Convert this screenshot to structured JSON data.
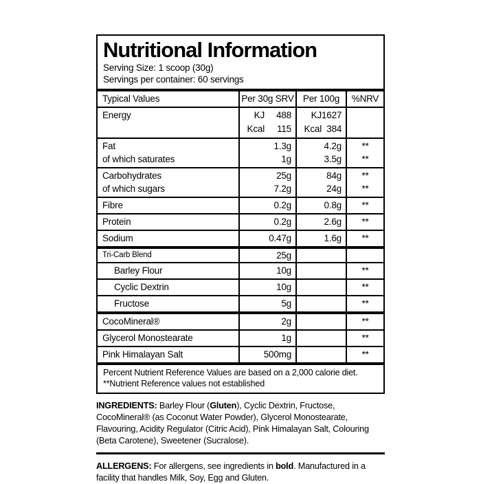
{
  "header": {
    "title": "Nutritional Information",
    "serving_size": "Serving Size: 1 scoop (30g)",
    "servings_per_container": "Servings per container: 60 servings"
  },
  "table": {
    "columns": {
      "typical_values": "Typical Values",
      "per_srv": "Per 30g SRV",
      "per_100g": "Per 100g",
      "nrv": "%NRV"
    },
    "energy": {
      "name": "Energy",
      "srv_kj_unit": "KJ",
      "srv_kj_value": "488",
      "srv_kcal_unit": "Kcal",
      "srv_kcal_value": "115",
      "p100_kj_unit": "KJ",
      "p100_kj_value": "1627",
      "p100_kcal_unit": "Kcal",
      "p100_kcal_value": "384"
    },
    "rows": [
      {
        "name": "Fat",
        "sub_name": "of which saturates",
        "srv": "1.3g",
        "srv_sub": "1g",
        "p100": "4.2g",
        "p100_sub": "3.5g",
        "nrv": "**",
        "nrv_sub": "**"
      },
      {
        "name": "Carbohydrates",
        "sub_name": "of which sugars",
        "srv": "25g",
        "srv_sub": "7.2g",
        "p100": "84g",
        "p100_sub": "24g",
        "nrv": "**",
        "nrv_sub": "**"
      },
      {
        "name": "Fibre",
        "srv": "0.2g",
        "p100": "0.8g",
        "nrv": "**"
      },
      {
        "name": "Protein",
        "srv": "0.2g",
        "p100": "2.6g",
        "nrv": "**"
      },
      {
        "name": "Sodium",
        "srv": "0.47g",
        "p100": "1.6g",
        "nrv": "**"
      },
      {
        "name": "Tri-Carb Blend",
        "srv": "25g"
      },
      {
        "name": "Barley Flour",
        "srv": "10g",
        "nrv": "**"
      },
      {
        "name": "Cyclic Dextrin",
        "srv": "10g",
        "nrv": "**"
      },
      {
        "name": "Fructose",
        "srv": "5g",
        "nrv": "**"
      },
      {
        "name": "CocoMineral®",
        "srv": "2g",
        "nrv": "**"
      },
      {
        "name": "Glycerol Monostearate",
        "srv": "1g",
        "nrv": "**"
      },
      {
        "name": "Pink Himalayan Salt",
        "srv": "500mg",
        "nrv": "**"
      }
    ],
    "footnotes": {
      "line1": "Percent Nutrient Reference Values are based on a 2,000 calorie diet.",
      "line2": "**Nutrient Reference values not established"
    }
  },
  "ingredients": {
    "label": "INGREDIENTS:",
    "part1": " Barley Flour (",
    "bold1": "Gluten",
    "part2": "), Cyclic Dextrin, Fructose, CocoMineral® (as Coconut Water Powder), Glycerol Monostearate, Flavouring, Acidity Regulator (Citric Acid), Pink Himalayan Salt, Colouring (Beta Carotene), Sweetener (Sucralose)."
  },
  "allergens": {
    "label": "ALLERGENS:",
    "part1": " For allergens, see ingredients in ",
    "bold1": "bold",
    "part2": ". Manufactured in a facility that handles Milk, Soy, Egg and Gluten."
  }
}
